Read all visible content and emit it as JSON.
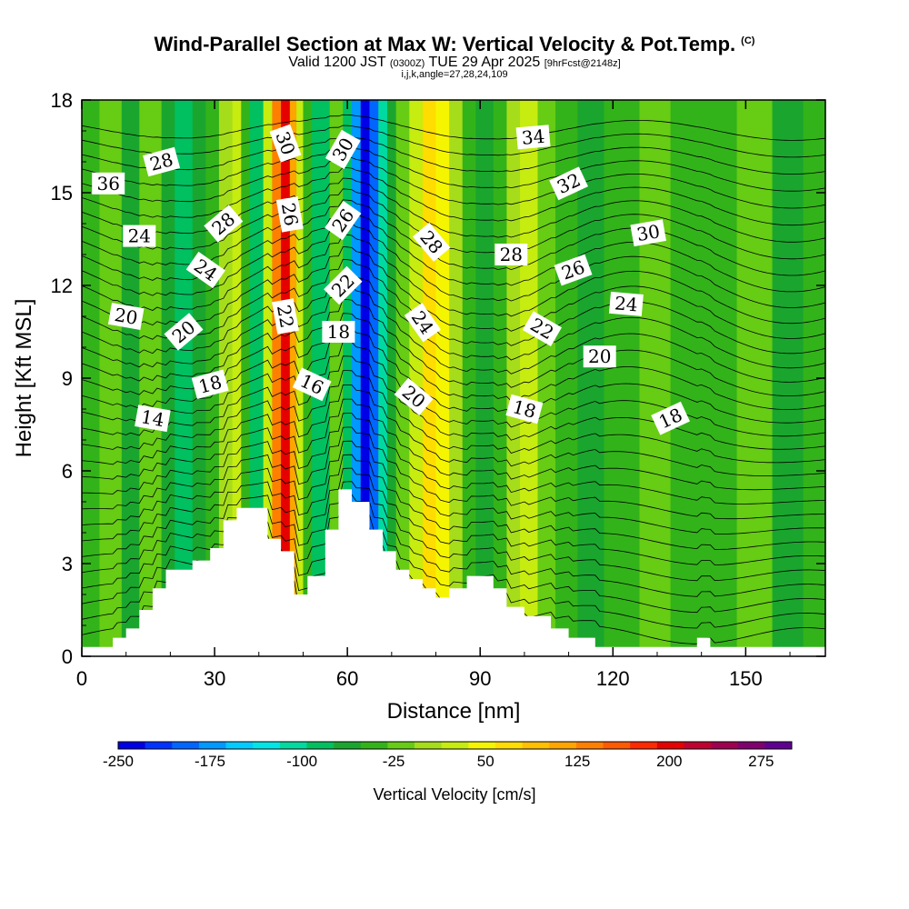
{
  "title": {
    "main": "Wind-Parallel Section at Max W: Vertical Velocity & Pot.Temp.",
    "main_unit": "(C)",
    "valid_prefix": "Valid 1200 JST",
    "valid_utc": "(0300Z)",
    "valid_date": "TUE 29 Apr 2025",
    "forecast_info": "[9hrFcst@2148z]",
    "params": "i,j,k,angle=27,28,24,109"
  },
  "chart_data": {
    "type": "heatmap",
    "xlabel": "Distance [nm]",
    "ylabel": "Height [Kft MSL]",
    "xlim": [
      0,
      168
    ],
    "ylim": [
      0,
      18
    ],
    "x_ticks": [
      0,
      30,
      60,
      90,
      120,
      150
    ],
    "y_ticks": [
      0,
      3,
      6,
      9,
      12,
      15,
      18
    ],
    "colorbar": {
      "title": "Vertical Velocity [cm/s]",
      "min": -250,
      "max": 300,
      "step": 25,
      "tick_labels": [
        "-250",
        "-175",
        "-100",
        "-25",
        "50",
        "125",
        "200",
        "275"
      ],
      "tick_values": [
        -250,
        -175,
        -100,
        -25,
        50,
        125,
        200,
        275
      ],
      "colors": [
        "#0000e6",
        "#0033ff",
        "#0066ff",
        "#0099ff",
        "#00ccff",
        "#00e6e6",
        "#00d9a0",
        "#00c060",
        "#1aa62e",
        "#33b31a",
        "#66cc14",
        "#a6dd1a",
        "#c6ec10",
        "#f5f500",
        "#ffdd00",
        "#ffc000",
        "#ffa500",
        "#ff8000",
        "#ff5a00",
        "#ff2a00",
        "#e60000",
        "#c00030",
        "#a00050",
        "#800070",
        "#600090"
      ]
    },
    "velocity_columns": [
      {
        "x": [
          0,
          4
        ],
        "value": -5
      },
      {
        "x": [
          4,
          9
        ],
        "value": 10
      },
      {
        "x": [
          9,
          13
        ],
        "value": -40
      },
      {
        "x": [
          13,
          18
        ],
        "value": 5
      },
      {
        "x": [
          18,
          21
        ],
        "value": -40
      },
      {
        "x": [
          21,
          25
        ],
        "value": -70
      },
      {
        "x": [
          25,
          28
        ],
        "value": -40
      },
      {
        "x": [
          28,
          31
        ],
        "value": -20
      },
      {
        "x": [
          31,
          34
        ],
        "value": 40
      },
      {
        "x": [
          34,
          36
        ],
        "value": 60
      },
      {
        "x": [
          36,
          38
        ],
        "value": -20
      },
      {
        "x": [
          38,
          41
        ],
        "value": -70
      },
      {
        "x": [
          41,
          43
        ],
        "value": 60
      },
      {
        "x": [
          43,
          45
        ],
        "value": 180
      },
      {
        "x": [
          45,
          47
        ],
        "value": 260
      },
      {
        "x": [
          47,
          48.5
        ],
        "value": 150
      },
      {
        "x": [
          48.5,
          50
        ],
        "value": 60
      },
      {
        "x": [
          50,
          52
        ],
        "value": -20
      },
      {
        "x": [
          52,
          56
        ],
        "value": -60
      },
      {
        "x": [
          56,
          59
        ],
        "value": 10
      },
      {
        "x": [
          59,
          61
        ],
        "value": -60
      },
      {
        "x": [
          61,
          63
        ],
        "value": -160
      },
      {
        "x": [
          63,
          65
        ],
        "value": -240
      },
      {
        "x": [
          65,
          67
        ],
        "value": -180
      },
      {
        "x": [
          67,
          69
        ],
        "value": -90
      },
      {
        "x": [
          69,
          71
        ],
        "value": -30
      },
      {
        "x": [
          71,
          74
        ],
        "value": 20
      },
      {
        "x": [
          74,
          77
        ],
        "value": 60
      },
      {
        "x": [
          77,
          80
        ],
        "value": 110
      },
      {
        "x": [
          80,
          83
        ],
        "value": 80
      },
      {
        "x": [
          83,
          86
        ],
        "value": 30
      },
      {
        "x": [
          86,
          89
        ],
        "value": -20
      },
      {
        "x": [
          89,
          93
        ],
        "value": -50
      },
      {
        "x": [
          93,
          96
        ],
        "value": -20
      },
      {
        "x": [
          96,
          99
        ],
        "value": 40
      },
      {
        "x": [
          99,
          103
        ],
        "value": 60
      },
      {
        "x": [
          103,
          107
        ],
        "value": 20
      },
      {
        "x": [
          107,
          112
        ],
        "value": -10
      },
      {
        "x": [
          112,
          118
        ],
        "value": -30
      },
      {
        "x": [
          118,
          126
        ],
        "value": -10
      },
      {
        "x": [
          126,
          133
        ],
        "value": 10
      },
      {
        "x": [
          133,
          140
        ],
        "value": -25
      },
      {
        "x": [
          140,
          148
        ],
        "value": -5
      },
      {
        "x": [
          148,
          156
        ],
        "value": 5
      },
      {
        "x": [
          156,
          163
        ],
        "value": -30
      },
      {
        "x": [
          163,
          168
        ],
        "value": -5
      }
    ],
    "terrain": {
      "x": [
        0,
        7,
        7,
        10,
        10,
        13,
        13,
        16,
        16,
        19,
        19,
        22,
        22,
        25,
        25,
        29,
        29,
        32,
        32,
        35,
        35,
        38,
        38,
        42,
        42,
        45,
        45,
        48,
        48,
        51,
        51,
        55,
        55,
        58,
        58,
        61,
        61,
        65,
        65,
        68,
        68,
        71,
        71,
        74,
        74,
        77,
        77,
        80,
        80,
        83,
        83,
        87,
        87,
        90,
        90,
        93,
        93,
        96,
        96,
        100,
        100,
        103,
        103,
        106,
        106,
        110,
        110,
        113,
        113,
        116,
        116,
        119,
        119,
        122,
        122,
        126,
        126,
        129,
        129,
        133,
        133,
        136,
        136,
        139,
        139,
        142,
        142,
        145,
        145,
        148,
        148,
        168
      ],
      "y": [
        0.3,
        0.3,
        0.6,
        0.6,
        0.9,
        0.9,
        1.5,
        1.5,
        2.2,
        2.2,
        2.8,
        2.8,
        2.8,
        2.8,
        3.1,
        3.1,
        3.5,
        3.5,
        4.4,
        4.4,
        4.8,
        4.8,
        4.8,
        4.8,
        3.8,
        3.8,
        3.4,
        3.4,
        2.0,
        2.0,
        2.6,
        2.6,
        4.1,
        4.1,
        5.4,
        5.4,
        5.0,
        5.0,
        4.1,
        4.1,
        3.4,
        3.4,
        2.8,
        2.8,
        2.5,
        2.5,
        2.2,
        2.2,
        1.9,
        1.9,
        2.2,
        2.2,
        2.6,
        2.6,
        2.6,
        2.6,
        2.2,
        2.2,
        1.6,
        1.6,
        1.3,
        1.3,
        1.3,
        1.3,
        0.9,
        0.9,
        0.6,
        0.6,
        0.6,
        0.6,
        0.3,
        0.3,
        0.3,
        0.3,
        0.3,
        0.3,
        0.3,
        0.3,
        0.3,
        0.3,
        0.3,
        0.3,
        0.3,
        0.3,
        0.6,
        0.6,
        0.3,
        0.3,
        0.3,
        0.3,
        0.3,
        0.3
      ]
    },
    "contour_labels": [
      {
        "text": "28",
        "x": 18,
        "y": 16.0,
        "angle": 15
      },
      {
        "text": "36",
        "x": 6,
        "y": 15.3,
        "angle": 0
      },
      {
        "text": "28",
        "x": 32,
        "y": 14.0,
        "angle": 40
      },
      {
        "text": "24",
        "x": 13,
        "y": 13.6,
        "angle": 0
      },
      {
        "text": "24",
        "x": 28,
        "y": 12.5,
        "angle": -35
      },
      {
        "text": "20",
        "x": 10,
        "y": 11.0,
        "angle": -10
      },
      {
        "text": "20",
        "x": 23,
        "y": 10.5,
        "angle": 40
      },
      {
        "text": "18",
        "x": 29,
        "y": 8.8,
        "angle": 15
      },
      {
        "text": "14",
        "x": 16,
        "y": 7.7,
        "angle": -10
      },
      {
        "text": "30",
        "x": 46,
        "y": 16.6,
        "angle": -70
      },
      {
        "text": "26",
        "x": 47,
        "y": 14.3,
        "angle": -80
      },
      {
        "text": "22",
        "x": 46,
        "y": 11.0,
        "angle": -80
      },
      {
        "text": "30",
        "x": 59,
        "y": 16.4,
        "angle": 60
      },
      {
        "text": "26",
        "x": 59,
        "y": 14.1,
        "angle": 55
      },
      {
        "text": "22",
        "x": 59,
        "y": 12.0,
        "angle": 45
      },
      {
        "text": "18",
        "x": 58,
        "y": 10.5,
        "angle": 0
      },
      {
        "text": "16",
        "x": 52,
        "y": 8.8,
        "angle": -25
      },
      {
        "text": "28",
        "x": 79,
        "y": 13.4,
        "angle": -50
      },
      {
        "text": "24",
        "x": 77,
        "y": 10.8,
        "angle": -55
      },
      {
        "text": "20",
        "x": 75,
        "y": 8.4,
        "angle": -40
      },
      {
        "text": "34",
        "x": 102,
        "y": 16.8,
        "angle": 5
      },
      {
        "text": "32",
        "x": 110,
        "y": 15.3,
        "angle": 25
      },
      {
        "text": "28",
        "x": 97,
        "y": 13.0,
        "angle": 0
      },
      {
        "text": "26",
        "x": 111,
        "y": 12.5,
        "angle": 20
      },
      {
        "text": "30",
        "x": 128,
        "y": 13.7,
        "angle": 10
      },
      {
        "text": "22",
        "x": 104,
        "y": 10.6,
        "angle": -30
      },
      {
        "text": "24",
        "x": 123,
        "y": 11.4,
        "angle": -5
      },
      {
        "text": "20",
        "x": 117,
        "y": 9.7,
        "angle": 0
      },
      {
        "text": "18",
        "x": 100,
        "y": 8.0,
        "angle": -15
      },
      {
        "text": "18",
        "x": 133,
        "y": 7.7,
        "angle": 25
      }
    ]
  }
}
